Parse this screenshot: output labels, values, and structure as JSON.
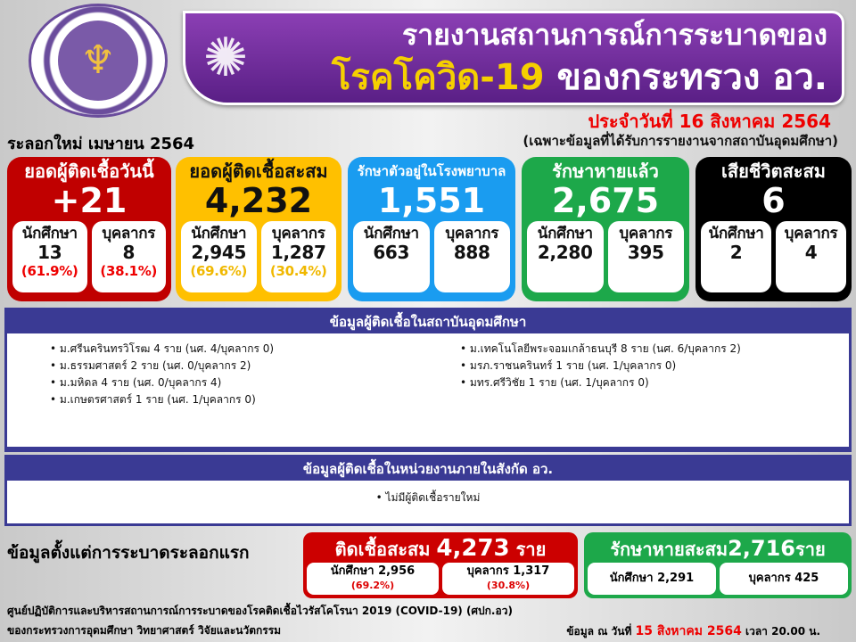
{
  "header": {
    "logo_icon": "ministry-logo",
    "title_line1": "รายงานสถานการณ์การระบาดของ",
    "title_line2_a": "โรคโควิด-19",
    "title_line2_b": " ของกระทรวง อว.",
    "date": "ประจำวันที่ 16 สิงหาคม 2564",
    "subtitle": "(เฉพาะข้อมูลที่ได้รับการรายงานจากสถาบันอุดมศึกษา)",
    "wave": "ระลอกใหม่ เมษายน 2564"
  },
  "cards": [
    {
      "title": "ยอดผู้ติดเชื้อวันนี้",
      "value": "+21",
      "a_label": "นักศึกษา",
      "a_value": "13",
      "a_pct": "(61.9%)",
      "b_label": "บุคลากร",
      "b_value": "8",
      "b_pct": "(38.1%)",
      "color": "#c00000"
    },
    {
      "title": "ยอดผู้ติดเชื้อสะสม",
      "value": "4,232",
      "a_label": "นักศึกษา",
      "a_value": "2,945",
      "a_pct": "(69.6%)",
      "b_label": "บุคลากร",
      "b_value": "1,287",
      "b_pct": "(30.4%)",
      "color": "#ffc000"
    },
    {
      "title": "รักษาตัวอยู่ในโรงพยาบาล",
      "value": "1,551",
      "a_label": "นักศึกษา",
      "a_value": "663",
      "b_label": "บุคลากร",
      "b_value": "888",
      "color": "#1a9cf0"
    },
    {
      "title": "รักษาหายแล้ว",
      "value": "2,675",
      "a_label": "นักศึกษา",
      "a_value": "2,280",
      "b_label": "บุคลากร",
      "b_value": "395",
      "color": "#1da84a"
    },
    {
      "title": "เสียชีวิตสะสม",
      "value": "6",
      "a_label": "นักศึกษา",
      "a_value": "2",
      "b_label": "บุคลากร",
      "b_value": "4",
      "color": "#000000"
    }
  ],
  "institutions": {
    "heading": "ข้อมูลผู้ติดเชื้อในสถาบันอุดมศึกษา",
    "left": [
      "ม.ศรีนครินทรวิโรฒ  4 ราย (นศ. 4/บุคลากร 0)",
      "ม.ธรรมศาสตร์ 2 ราย (นศ. 0/บุคลากร 2)",
      "ม.มหิดล 4 ราย (นศ. 0/บุคลากร 4)",
      "ม.เกษตรศาสตร์ 1 ราย (นศ. 1/บุคลากร 0)"
    ],
    "right": [
      "ม.เทคโนโลยีพระจอมเกล้าธนบุรี  8 ราย (นศ. 6/บุคลากร 2)",
      "มรภ.ราชนครินทร์ 1 ราย (นศ. 1/บุคลากร 0)",
      "มทร.ศรีวิชัย 1 ราย (นศ. 1/บุคลากร 0)"
    ]
  },
  "agencies": {
    "heading": "ข้อมูลผู้ติดเชื้อในหน่วยงานภายในสังกัด อว.",
    "items": [
      "ไม่มีผู้ติดเชื้อรายใหม่"
    ]
  },
  "cumulative": {
    "label": "ข้อมูลตั้งแต่การระบาดระลอกแรก",
    "infected": {
      "title": "ติดเชื้อสะสม",
      "value": "4,273",
      "unit": "ราย",
      "a": "นักศึกษา 2,956",
      "a_pct": "(69.2%)",
      "b": "บุคลากร 1,317",
      "b_pct": "(30.8%)"
    },
    "recovered": {
      "title": "รักษาหายสะสม",
      "value": "2,716",
      "unit": "ราย",
      "a": "นักศึกษา 2,291",
      "b": "บุคลากร 425"
    }
  },
  "footer": {
    "line1": "ศูนย์ปฏิบัติการและบริหารสถานการณ์การระบาดของโรคติดเชื้อไวรัสโคโรนา  2019 (COVID-19) (ศปก.อว)",
    "line2": "ของกระทรวงการอุดมศึกษา  วิทยาศาสตร์ วิจัยและนวัตกรรม",
    "asof_a": "ข้อมูล ณ วันที่ ",
    "asof_date": "15 สิงหาคม 2564",
    "asof_b": " เวลา 20.00 น."
  }
}
